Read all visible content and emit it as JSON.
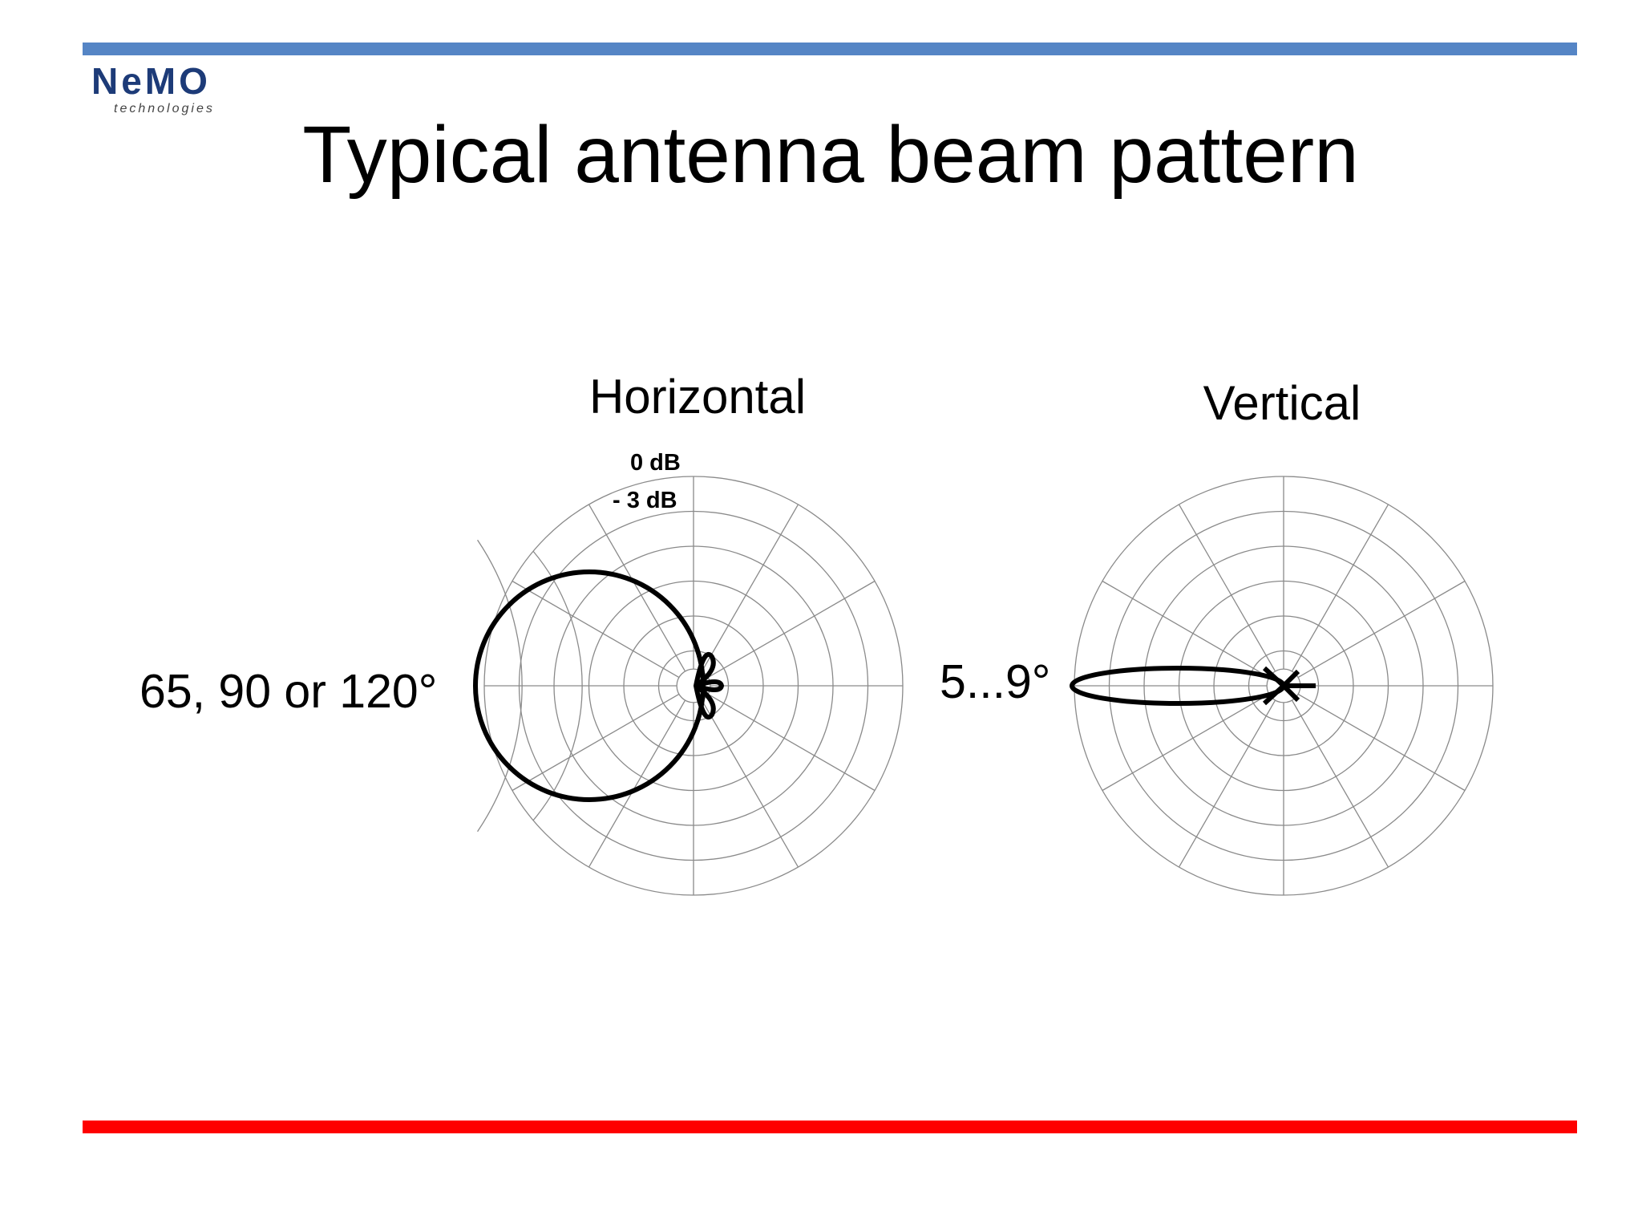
{
  "header": {
    "logo": "NeMO",
    "logo_subtitle": "technologies",
    "title": "Typical antenna beam pattern"
  },
  "diagrams": [
    {
      "label": "Horizontal",
      "ring_labels": [
        "0 dB",
        "- 3 dB"
      ],
      "beamwidth_label": "65, 90 or 120°"
    },
    {
      "label": "Vertical",
      "beamwidth_label": "5...9°"
    }
  ]
}
